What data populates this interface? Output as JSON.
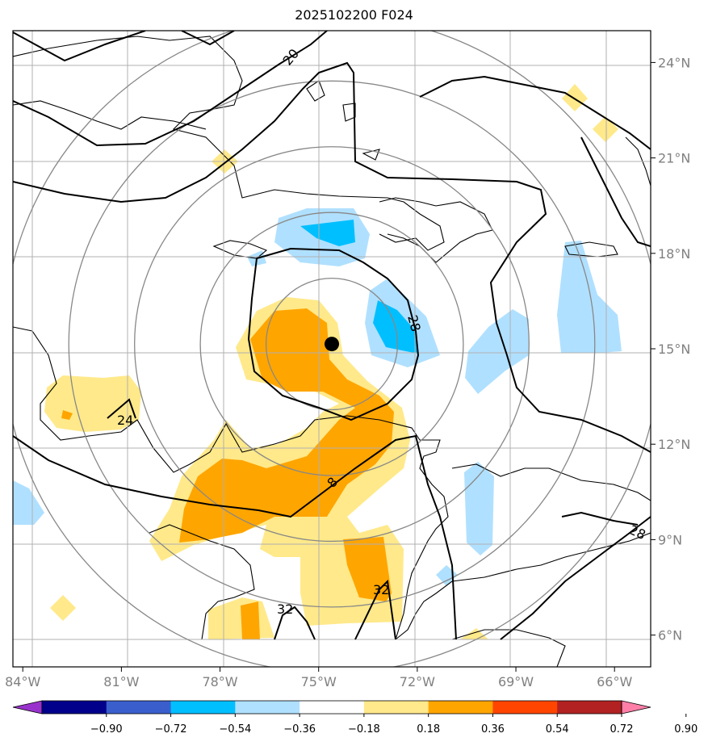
{
  "header": {
    "title": "2025102200 F024"
  },
  "chart_data": {
    "type": "map-contour",
    "title": "2025102200 F024",
    "projection": "lat-lon",
    "lon_range": [
      -84.3,
      -64.9
    ],
    "lat_range": [
      5.0,
      25.0
    ],
    "lat_ticks": [
      {
        "value": 6,
        "label": "6°N"
      },
      {
        "value": 9,
        "label": "9°N"
      },
      {
        "value": 12,
        "label": "12°N"
      },
      {
        "value": 15,
        "label": "15°N"
      },
      {
        "value": 18,
        "label": "18°N"
      },
      {
        "value": 21,
        "label": "21°N"
      },
      {
        "value": 24,
        "label": "24°N"
      }
    ],
    "lon_ticks": [
      {
        "value": -84,
        "label": "84°W"
      },
      {
        "value": -81,
        "label": "81°W"
      },
      {
        "value": -78,
        "label": "78°W"
      },
      {
        "value": -75,
        "label": "75°W"
      },
      {
        "value": -72,
        "label": "72°W"
      },
      {
        "value": -69,
        "label": "69°W"
      },
      {
        "value": -66,
        "label": "66°W"
      }
    ],
    "grid": true,
    "center_marker": {
      "lon": -74.6,
      "lat": 15.15
    },
    "range_rings_deg": [
      2.0,
      4.0,
      6.0,
      8.0,
      10.0
    ],
    "contour_labels": [
      {
        "text": "20",
        "lon": -76.2,
        "lat": 23.8
      },
      {
        "text": "28",
        "lon": -71.7,
        "lat": 16.0
      },
      {
        "text": "24",
        "lon": -80.5,
        "lat": 13.0
      },
      {
        "text": "28",
        "lon": -65.3,
        "lat": 9.4
      },
      {
        "text": "32",
        "lon": -73.2,
        "lat": 7.6
      },
      {
        "text": "32",
        "lon": -75.9,
        "lat": 7.0
      },
      {
        "text": "8",
        "lon": -74.5,
        "lat": 10.9
      }
    ],
    "colorbar": {
      "ticks": [
        "−0.90",
        "−0.72",
        "−0.54",
        "−0.36",
        "−0.18",
        "0.18",
        "0.36",
        "0.54",
        "0.72",
        "0.90"
      ],
      "colors": [
        "#9932CC",
        "#00008B",
        "#3A5FCD",
        "#00BFFF",
        "#B0E0FF",
        "#FFFFFF",
        "#FFE98A",
        "#FFA500",
        "#FF4500",
        "#B22222",
        "#FF7FA8"
      ],
      "extend": "both"
    }
  }
}
